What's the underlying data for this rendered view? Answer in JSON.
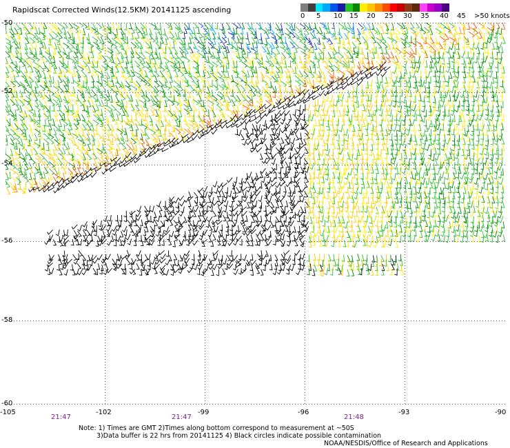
{
  "title": "Rapidscat Corrected Winds(12.5KM) 20141125 ascending",
  "legend": {
    "colors": [
      "#7f7f7f",
      "#3f3f3f",
      "#00e5ff",
      "#00aaff",
      "#0055ee",
      "#1a1aa8",
      "#22c522",
      "#008800",
      "#ffee00",
      "#ffc400",
      "#ff8c00",
      "#ff4a00",
      "#ff0000",
      "#c80000",
      "#8b3b1a",
      "#5a2a0a",
      "#ff40ff",
      "#cc00cc",
      "#9900cc",
      "#4b0082"
    ],
    "labels": [
      "0",
      "5",
      "10",
      "15",
      "20",
      "25",
      "30",
      "35",
      "40",
      "45",
      ">50 knots"
    ]
  },
  "map": {
    "lat_labels": [
      "-50",
      "-52",
      "-54",
      "-56",
      "-58",
      "-60"
    ],
    "lon_labels": [
      "-105",
      "-102",
      "-99",
      "-96",
      "-93",
      "-90"
    ],
    "time_labels": [
      "21:47",
      "21:47",
      "21:48"
    ]
  },
  "notes": {
    "line1": "Note: 1) Times are GMT 2)Times along bottom correspond to measurement at ~50S",
    "line2": "3)Data buffer is 22 hrs from 20141125 4) Black circles indicate possible contamination"
  },
  "credit": "NOAA/NESDIS/Office of Research and Applications"
}
